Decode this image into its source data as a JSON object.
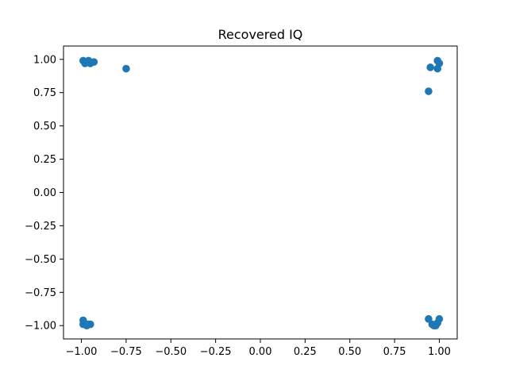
{
  "chart_data": {
    "type": "scatter",
    "title": "Recovered IQ",
    "xlabel": "",
    "ylabel": "",
    "xlim": [
      -1.1,
      1.1
    ],
    "ylim": [
      -1.1,
      1.1
    ],
    "xticks": [
      -1.0,
      -0.75,
      -0.5,
      -0.25,
      0.0,
      0.25,
      0.5,
      0.75,
      1.0
    ],
    "xtick_labels": [
      "−1.00",
      "−0.75",
      "−0.50",
      "−0.25",
      "0.00",
      "0.25",
      "0.50",
      "0.75",
      "1.00"
    ],
    "yticks": [
      -1.0,
      -0.75,
      -0.5,
      -0.25,
      0.0,
      0.25,
      0.5,
      0.75,
      1.0
    ],
    "ytick_labels": [
      "−1.00",
      "−0.75",
      "−0.50",
      "−0.25",
      "0.00",
      "0.25",
      "0.50",
      "0.75",
      "1.00"
    ],
    "grid": false,
    "color": "#1f77b4",
    "points": [
      {
        "x": -0.99,
        "y": 0.99
      },
      {
        "x": -0.98,
        "y": 0.97
      },
      {
        "x": -0.96,
        "y": 0.99
      },
      {
        "x": -0.95,
        "y": 0.97
      },
      {
        "x": -0.93,
        "y": 0.98
      },
      {
        "x": -0.97,
        "y": 0.98
      },
      {
        "x": -0.75,
        "y": 0.93
      },
      {
        "x": 0.99,
        "y": 0.99
      },
      {
        "x": 1.0,
        "y": 0.97
      },
      {
        "x": 0.99,
        "y": 0.93
      },
      {
        "x": 0.95,
        "y": 0.94
      },
      {
        "x": 0.94,
        "y": 0.76
      },
      {
        "x": -0.99,
        "y": -0.96
      },
      {
        "x": -0.99,
        "y": -0.99
      },
      {
        "x": -0.97,
        "y": -1.0
      },
      {
        "x": -0.95,
        "y": -0.99
      },
      {
        "x": -0.96,
        "y": -0.99
      },
      {
        "x": 0.94,
        "y": -0.95
      },
      {
        "x": 0.96,
        "y": -0.99
      },
      {
        "x": 0.97,
        "y": -1.0
      },
      {
        "x": 0.99,
        "y": -0.98
      },
      {
        "x": 1.0,
        "y": -0.95
      },
      {
        "x": 0.98,
        "y": -1.0
      }
    ]
  }
}
